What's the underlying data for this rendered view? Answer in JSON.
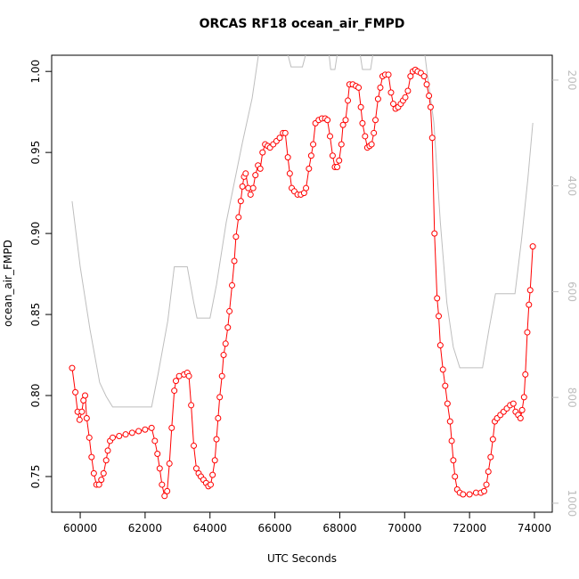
{
  "chart_data": {
    "type": "line",
    "title": "ORCAS RF18 ocean_air_FMPD",
    "xlabel": "UTC Seconds",
    "ylabel": "ocean_air_FMPD",
    "xlim": [
      59120,
      74550
    ],
    "xticks": [
      60000,
      62000,
      64000,
      66000,
      68000,
      70000,
      72000,
      74000
    ],
    "ylim": [
      0.728,
      1.01
    ],
    "yticks": [
      0.75,
      {
        "value": 0.8,
        "label": "0.80"
      },
      0.85,
      {
        "value": 0.9,
        "label": "0.90"
      },
      0.95,
      {
        "value": 1.0,
        "label": "1.00"
      }
    ],
    "y2lim": [
      1017,
      153
    ],
    "y2ticks": [
      200,
      400,
      600,
      800,
      1000
    ],
    "series": [
      {
        "color": "#ff0000",
        "markers": true,
        "x": [
          59750,
          59850,
          59920,
          59980,
          60050,
          60100,
          60150,
          60200,
          60280,
          60350,
          60420,
          60500,
          60580,
          60650,
          60720,
          60800,
          60850,
          60920,
          61000,
          61200,
          61400,
          61600,
          61800,
          62000,
          62200,
          62300,
          62380,
          62450,
          62520,
          62600,
          62680,
          62750,
          62820,
          62900,
          62950,
          63050,
          63200,
          63300,
          63350,
          63420,
          63500,
          63580,
          63650,
          63720,
          63800,
          63880,
          63950,
          64020,
          64080,
          64150,
          64200,
          64250,
          64300,
          64370,
          64420,
          64480,
          64550,
          64600,
          64680,
          64750,
          64800,
          64880,
          64950,
          65000,
          65050,
          65100,
          65180,
          65250,
          65330,
          65400,
          65480,
          65550,
          65620,
          65700,
          65780,
          65850,
          65950,
          66050,
          66150,
          66250,
          66320,
          66400,
          66460,
          66520,
          66600,
          66700,
          66800,
          66900,
          66960,
          67050,
          67120,
          67180,
          67250,
          67350,
          67450,
          67550,
          67620,
          67700,
          67780,
          67850,
          67920,
          67980,
          68050,
          68100,
          68180,
          68250,
          68300,
          68400,
          68500,
          68580,
          68650,
          68700,
          68780,
          68850,
          68920,
          68980,
          69050,
          69100,
          69180,
          69250,
          69320,
          69400,
          69500,
          69580,
          69650,
          69720,
          69800,
          69880,
          69950,
          70020,
          70100,
          70180,
          70250,
          70330,
          70400,
          70500,
          70600,
          70680,
          70750,
          70800,
          70850,
          70920,
          71000,
          71050,
          71100,
          71180,
          71250,
          71320,
          71400,
          71450,
          71500,
          71550,
          71620,
          71700,
          71800,
          72000,
          72200,
          72350,
          72450,
          72520,
          72580,
          72650,
          72720,
          72780,
          72850,
          72950,
          73050,
          73150,
          73250,
          73350,
          73420,
          73500,
          73570,
          73620,
          73680,
          73720,
          73780,
          73830,
          73870,
          73950
        ],
        "values": [
          0.817,
          0.802,
          0.79,
          0.785,
          0.79,
          0.797,
          0.8,
          0.786,
          0.774,
          0.762,
          0.752,
          0.745,
          0.745,
          0.748,
          0.752,
          0.76,
          0.766,
          0.772,
          0.774,
          0.775,
          0.776,
          0.777,
          0.778,
          0.779,
          0.78,
          0.772,
          0.764,
          0.755,
          0.745,
          0.738,
          0.741,
          0.758,
          0.78,
          0.803,
          0.809,
          0.812,
          0.813,
          0.814,
          0.812,
          0.794,
          0.769,
          0.755,
          0.752,
          0.75,
          0.748,
          0.746,
          0.744,
          0.745,
          0.751,
          0.76,
          0.773,
          0.786,
          0.799,
          0.812,
          0.825,
          0.832,
          0.842,
          0.852,
          0.868,
          0.883,
          0.898,
          0.91,
          0.92,
          0.929,
          0.935,
          0.937,
          0.928,
          0.924,
          0.928,
          0.936,
          0.942,
          0.94,
          0.95,
          0.955,
          0.954,
          0.953,
          0.955,
          0.957,
          0.959,
          0.962,
          0.962,
          0.947,
          0.937,
          0.928,
          0.926,
          0.924,
          0.924,
          0.925,
          0.928,
          0.94,
          0.948,
          0.955,
          0.968,
          0.97,
          0.971,
          0.971,
          0.97,
          0.96,
          0.948,
          0.941,
          0.941,
          0.945,
          0.955,
          0.967,
          0.97,
          0.982,
          0.992,
          0.992,
          0.991,
          0.99,
          0.978,
          0.968,
          0.96,
          0.953,
          0.954,
          0.955,
          0.962,
          0.97,
          0.983,
          0.99,
          0.997,
          0.998,
          0.998,
          0.987,
          0.98,
          0.977,
          0.978,
          0.98,
          0.982,
          0.984,
          0.988,
          0.997,
          1.0,
          1.001,
          1.0,
          0.999,
          0.997,
          0.992,
          0.985,
          0.978,
          0.959,
          0.9,
          0.86,
          0.849,
          0.831,
          0.816,
          0.806,
          0.795,
          0.784,
          0.772,
          0.76,
          0.75,
          0.742,
          0.74,
          0.739,
          0.739,
          0.74,
          0.74,
          0.741,
          0.745,
          0.753,
          0.762,
          0.773,
          0.784,
          0.786,
          0.788,
          0.79,
          0.792,
          0.794,
          0.795,
          0.79,
          0.788,
          0.786,
          0.791,
          0.799,
          0.813,
          0.839,
          0.856,
          0.865,
          0.892
        ]
      },
      {
        "color": "#bebebe",
        "axis": "y2",
        "markers": false,
        "x": [
          59750,
          60000,
          60300,
          60600,
          60800,
          61000,
          62200,
          62400,
          62700,
          62900,
          63300,
          63500,
          63600,
          64000,
          64200,
          64500,
          65000,
          65300,
          65500,
          66350,
          66500,
          66850,
          67000,
          67650,
          67720,
          67850,
          67950,
          68600,
          68700,
          68950,
          69050,
          70600,
          70700,
          70900,
          71100,
          71300,
          71500,
          71700,
          72400,
          72600,
          72800,
          73400,
          73600,
          73800,
          73950
        ],
        "values": [
          429,
          553,
          671,
          772,
          798,
          818,
          818,
          756,
          655,
          553,
          553,
          621,
          650,
          650,
          587,
          469,
          318,
          234,
          150,
          140,
          175,
          175,
          140,
          140,
          180,
          180,
          140,
          140,
          180,
          180,
          140,
          140,
          190,
          280,
          469,
          621,
          705,
          744,
          744,
          671,
          604,
          604,
          503,
          385,
          281
        ]
      }
    ]
  }
}
